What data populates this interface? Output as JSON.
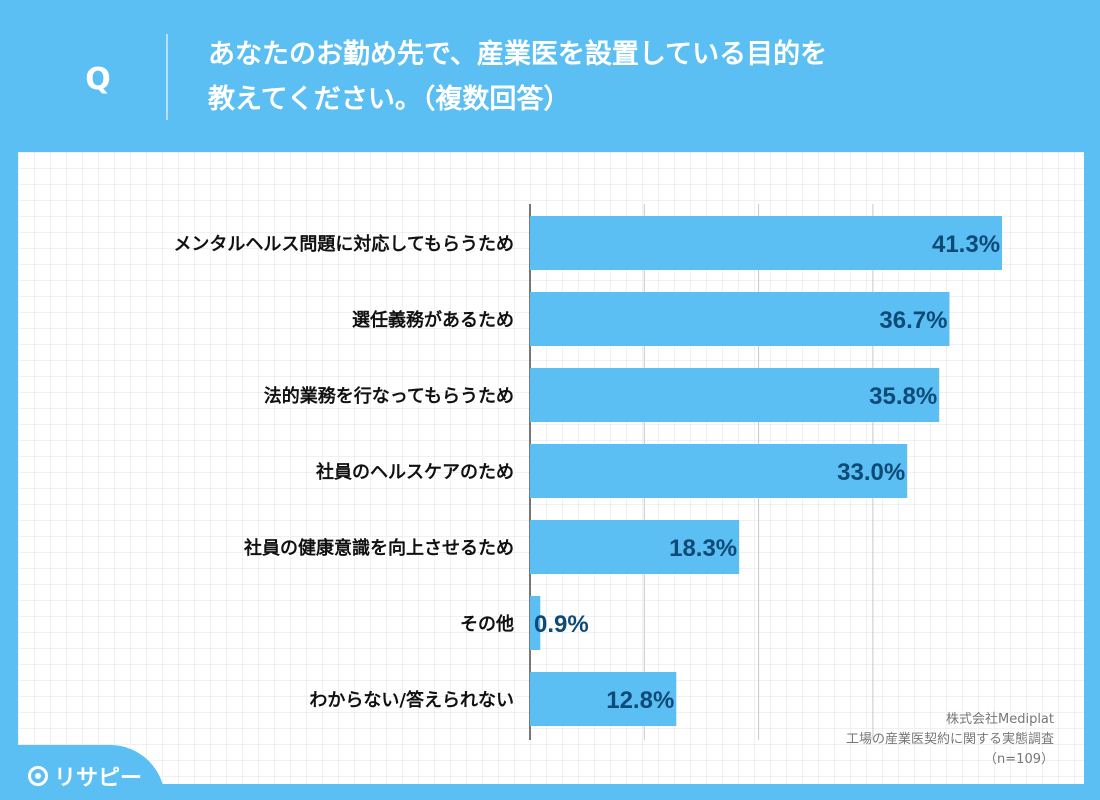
{
  "header": {
    "q_label": "Q",
    "question_line1": "あなたのお勤め先で、産業医を設置している目的を",
    "question_line2": "教えてください。（複数回答）"
  },
  "chart_data": {
    "type": "bar",
    "orientation": "horizontal",
    "title": "あなたのお勤め先で、産業医を設置している目的を教えてください。（複数回答）",
    "unit": "%",
    "xlim": [
      0,
      100
    ],
    "categories": [
      "メンタルヘルス問題に対応してもらうため",
      "選任義務があるため",
      "法的業務を行なってもらうため",
      "社員のヘルスケアのため",
      "社員の健康意識を向上させるため",
      "その他",
      "わからない/答えられない"
    ],
    "values": [
      41.3,
      36.7,
      35.8,
      33.0,
      18.3,
      0.9,
      12.8
    ],
    "labels": [
      "41.3%",
      "36.7%",
      "35.8%",
      "33.0%",
      "18.3%",
      "0.9%",
      "12.8%"
    ]
  },
  "colors": {
    "bar": "#5bbff4",
    "value_text": "#0d4a78",
    "category_text": "#111111",
    "gridline": "#c8c8c8"
  },
  "footnote": {
    "company": "株式会社Mediplat",
    "survey": "工場の産業医契約に関する実態調査",
    "sample": "（n=109）"
  },
  "logo": {
    "text": "リサピー"
  }
}
